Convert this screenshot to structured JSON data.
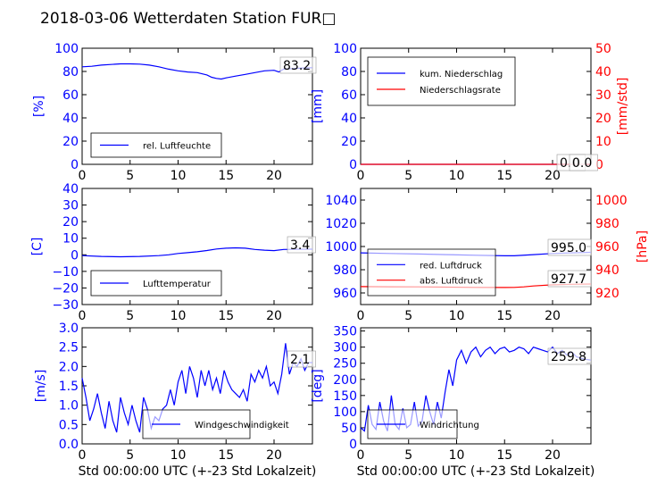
{
  "title": "2018-03-06 Wetterdaten Station FUR□",
  "chart_data": [
    {
      "type": "line",
      "panel": "humidity",
      "ylabel": "[%]",
      "ylim": [
        0,
        100
      ],
      "yticks": [
        "0",
        "20",
        "40",
        "60",
        "80",
        "100"
      ],
      "xlim": [
        0,
        24
      ],
      "xticks": [
        "0",
        "5",
        "10",
        "15",
        "20"
      ],
      "xlabel": "",
      "grid": false,
      "legend_position": "lower-left",
      "value_box": "83.2",
      "series": [
        {
          "name": "rel. Luftfeuchte",
          "color": "#0000ff",
          "axis": "left",
          "x": [
            0,
            1,
            2,
            3,
            4,
            5,
            6,
            7,
            8,
            9,
            10,
            11,
            12,
            13,
            13.5,
            14,
            14.5,
            15,
            16,
            17,
            18,
            19,
            20,
            20.5,
            21,
            22,
            23,
            24
          ],
          "values": [
            84,
            84.5,
            85.5,
            86,
            86.5,
            86.5,
            86.3,
            85.5,
            84,
            82,
            80.5,
            79.5,
            79,
            77,
            75,
            74,
            73.5,
            74.5,
            76,
            77.5,
            79,
            80.5,
            81,
            79.5,
            82,
            82.5,
            83,
            83.2
          ]
        }
      ]
    },
    {
      "type": "line",
      "panel": "precipitation",
      "ylabel": "[mm]",
      "ylim": [
        0,
        100
      ],
      "yticks": [
        "0",
        "20",
        "40",
        "60",
        "80",
        "100"
      ],
      "ylabel_right": "[mm/std]",
      "ylim_right": [
        0,
        50
      ],
      "yticks_right": [
        "0",
        "10",
        "20",
        "30",
        "40",
        "50"
      ],
      "xlim": [
        0,
        24
      ],
      "xticks": [
        "0",
        "5",
        "10",
        "15",
        "20"
      ],
      "xlabel": "",
      "grid": false,
      "legend_position": "upper-left",
      "value_boxes": [
        "0.0",
        "0.0"
      ],
      "series": [
        {
          "name": "kum. Niederschlag",
          "color": "#0000ff",
          "axis": "left",
          "x": [
            0,
            24
          ],
          "values": [
            0,
            0
          ]
        },
        {
          "name": "Niederschlagsrate",
          "color": "#ff0000",
          "axis": "right",
          "x": [
            0,
            24
          ],
          "values": [
            0,
            0
          ]
        }
      ]
    },
    {
      "type": "line",
      "panel": "temperature",
      "ylabel": "[C]",
      "ylim": [
        -30,
        40
      ],
      "yticks": [
        "−30",
        "−20",
        "−10",
        "0",
        "10",
        "20",
        "30",
        "40"
      ],
      "xlim": [
        0,
        24
      ],
      "xticks": [
        "0",
        "5",
        "10",
        "15",
        "20"
      ],
      "xlabel": "",
      "grid": false,
      "legend_position": "lower-left",
      "value_box": "3.4",
      "series": [
        {
          "name": "Lufttemperatur",
          "color": "#0000ff",
          "axis": "left",
          "x": [
            0,
            2,
            4,
            6,
            8,
            9,
            10,
            11,
            12,
            13,
            14,
            15,
            16,
            17,
            18,
            19,
            20,
            21,
            22,
            23,
            24
          ],
          "values": [
            -0.5,
            -1,
            -1.2,
            -1,
            -0.5,
            0,
            0.8,
            1.3,
            1.8,
            2.6,
            3.5,
            4,
            4.2,
            4,
            3.2,
            2.8,
            2.5,
            3.2,
            3.3,
            3.4,
            3.4
          ]
        }
      ]
    },
    {
      "type": "line",
      "panel": "pressure",
      "ylabel_right": "[hPa]",
      "ylim": [
        950,
        1050
      ],
      "yticks": [
        "960",
        "980",
        "1000",
        "1020",
        "1040"
      ],
      "ylim_right": [
        910,
        1010
      ],
      "yticks_right": [
        "920",
        "940",
        "960",
        "980",
        "1000"
      ],
      "xlim": [
        0,
        24
      ],
      "xticks": [
        "0",
        "5",
        "10",
        "15",
        "20"
      ],
      "xlabel": "",
      "grid": false,
      "legend_position": "lower-left",
      "value_boxes": [
        "995.0",
        "927.7"
      ],
      "series": [
        {
          "name": "red. Luftdruck",
          "color": "#0000ff",
          "axis": "left",
          "x": [
            0,
            3,
            6,
            9,
            12,
            15,
            16,
            18,
            20,
            22,
            24
          ],
          "values": [
            994.5,
            994,
            993.5,
            993,
            992.5,
            992,
            992,
            993,
            994,
            994.5,
            995
          ]
        },
        {
          "name": "abs. Luftdruck",
          "color": "#ff0000",
          "axis": "right",
          "x": [
            0,
            3,
            6,
            9,
            12,
            15,
            16,
            17,
            18,
            20,
            22,
            24
          ],
          "values": [
            925.5,
            925.3,
            925.2,
            925,
            924.8,
            924.7,
            924.8,
            925.2,
            926,
            927,
            927.5,
            927.7
          ]
        }
      ]
    },
    {
      "type": "line",
      "panel": "wind-speed",
      "ylabel": "[m/s]",
      "ylim": [
        0,
        3
      ],
      "yticks": [
        "0.0",
        "0.5",
        "1.0",
        "1.5",
        "2.0",
        "2.5",
        "3.0"
      ],
      "xlim": [
        0,
        24
      ],
      "xticks": [
        "0",
        "5",
        "10",
        "15",
        "20"
      ],
      "xlabel": "Std 00:00:00 UTC (+-23 Std Lokalzeit)",
      "grid": false,
      "legend_position": "lower-center",
      "value_box": "2.1",
      "series": [
        {
          "name": "Windgeschwindigkeit",
          "color": "#0000ff",
          "axis": "left",
          "x": [
            0,
            0.4,
            0.8,
            1.2,
            1.6,
            2,
            2.4,
            2.8,
            3.2,
            3.6,
            4,
            4.4,
            4.8,
            5.2,
            5.6,
            6,
            6.4,
            6.8,
            7.2,
            7.6,
            8,
            8.4,
            8.8,
            9.2,
            9.6,
            10,
            10.4,
            10.8,
            11.2,
            11.6,
            12,
            12.4,
            12.8,
            13.2,
            13.6,
            14,
            14.4,
            14.8,
            15.2,
            15.6,
            16,
            16.4,
            16.8,
            17.2,
            17.6,
            18,
            18.4,
            18.8,
            19.2,
            19.6,
            20,
            20.4,
            20.8,
            21.2,
            21.6,
            22,
            22.4,
            22.8,
            23.2,
            23.6,
            24
          ],
          "values": [
            1.7,
            1.2,
            0.6,
            0.9,
            1.3,
            0.8,
            0.4,
            1.1,
            0.6,
            0.3,
            1.2,
            0.8,
            0.5,
            1.0,
            0.6,
            0.3,
            1.2,
            0.9,
            0.4,
            0.7,
            0.6,
            0.9,
            1.0,
            1.4,
            1.0,
            1.6,
            1.9,
            1.3,
            2.0,
            1.7,
            1.2,
            1.9,
            1.5,
            1.9,
            1.4,
            1.7,
            1.3,
            1.9,
            1.6,
            1.4,
            1.3,
            1.2,
            1.4,
            1.1,
            1.8,
            1.6,
            1.9,
            1.7,
            2.0,
            1.5,
            1.6,
            1.3,
            1.8,
            2.6,
            1.8,
            2.1,
            2.0,
            2.2,
            1.9,
            2.1,
            2.1
          ]
        }
      ]
    },
    {
      "type": "line",
      "panel": "wind-direction",
      "ylabel": "[deg]",
      "ylim": [
        0,
        360
      ],
      "yticks": [
        "0",
        "50",
        "100",
        "150",
        "200",
        "250",
        "300",
        "350"
      ],
      "xlim": [
        0,
        24
      ],
      "xticks": [
        "0",
        "5",
        "10",
        "15",
        "20"
      ],
      "xlabel": "Std 00:00:00 UTC (+-23 Std Lokalzeit)",
      "grid": false,
      "legend_position": "lower-left",
      "value_box": "259.8",
      "series": [
        {
          "name": "Windrichtung",
          "color": "#0000ff",
          "axis": "left",
          "x": [
            0,
            0.4,
            0.8,
            1.2,
            1.6,
            2,
            2.4,
            2.8,
            3.2,
            3.6,
            4,
            4.4,
            4.8,
            5.2,
            5.6,
            6,
            6.4,
            6.8,
            7.2,
            7.6,
            8,
            8.4,
            8.8,
            9.2,
            9.6,
            10,
            10.5,
            11,
            11.5,
            12,
            12.5,
            13,
            13.5,
            14,
            14.5,
            15,
            15.5,
            16,
            16.5,
            17,
            17.5,
            18,
            18.5,
            19,
            19.5,
            20,
            20.5,
            21,
            21.5,
            22,
            22.5,
            23,
            23.5,
            24
          ],
          "values": [
            50,
            40,
            120,
            60,
            45,
            130,
            70,
            40,
            150,
            60,
            45,
            110,
            50,
            60,
            130,
            55,
            70,
            150,
            100,
            60,
            130,
            80,
            160,
            230,
            180,
            260,
            290,
            250,
            285,
            300,
            270,
            290,
            300,
            280,
            295,
            300,
            285,
            290,
            300,
            295,
            280,
            300,
            295,
            290,
            285,
            300,
            280,
            290,
            275,
            285,
            270,
            265,
            262,
            259.8
          ]
        }
      ]
    }
  ]
}
